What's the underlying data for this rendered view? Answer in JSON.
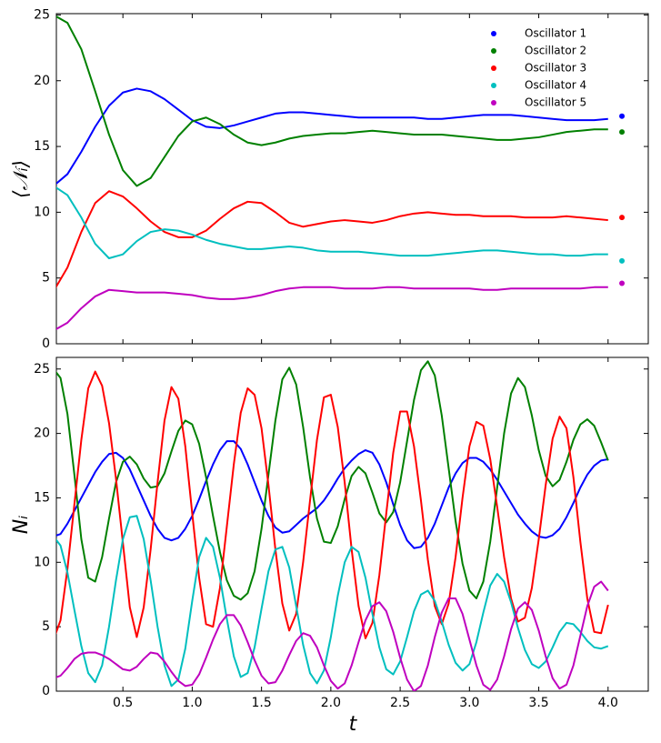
{
  "chart_data": [
    {
      "type": "line",
      "ylabel": "⟨𝒩ᵢ⟩",
      "legend": "upper right",
      "show_xtick_labels": false,
      "xlim": [
        0.02,
        4.29
      ],
      "ylim": [
        0,
        25.1
      ],
      "xticks": [
        0.5,
        {
          "value": 1,
          "label": "1.0"
        },
        1.5,
        {
          "value": 2,
          "label": "2.0"
        },
        2.5,
        {
          "value": 3,
          "label": "3.0"
        },
        3.5,
        {
          "value": 4,
          "label": "4.0"
        }
      ],
      "yticks": [
        0,
        5,
        10,
        15,
        20,
        25
      ],
      "endpoint_x": 4.1,
      "x": [
        0,
        0.1,
        0.2,
        0.3,
        0.4,
        0.5,
        0.6,
        0.7,
        0.8,
        0.9,
        1.0,
        1.1,
        1.2,
        1.3,
        1.4,
        1.5,
        1.6,
        1.7,
        1.8,
        1.9,
        2.0,
        2.1,
        2.2,
        2.3,
        2.4,
        2.5,
        2.6,
        2.7,
        2.8,
        2.9,
        3.0,
        3.1,
        3.2,
        3.3,
        3.4,
        3.5,
        3.6,
        3.7,
        3.8,
        3.9,
        4.0
      ],
      "series": [
        {
          "name": "Oscillator 1",
          "color": "#0000ff",
          "endpoint": 17.3,
          "values": [
            12,
            12.9,
            14.6,
            16.5,
            18.1,
            19.1,
            19.4,
            19.2,
            18.6,
            17.8,
            17,
            16.5,
            16.4,
            16.6,
            16.9,
            17.2,
            17.5,
            17.6,
            17.6,
            17.5,
            17.4,
            17.3,
            17.2,
            17.2,
            17.2,
            17.2,
            17.2,
            17.1,
            17.1,
            17.2,
            17.3,
            17.4,
            17.4,
            17.4,
            17.3,
            17.2,
            17.1,
            17,
            17,
            17,
            17.1
          ]
        },
        {
          "name": "Oscillator 2",
          "color": "#008000",
          "endpoint": 16.1,
          "values": [
            25,
            24.4,
            22.4,
            19.2,
            15.9,
            13.2,
            12,
            12.6,
            14.2,
            15.8,
            16.9,
            17.2,
            16.7,
            15.9,
            15.3,
            15.1,
            15.3,
            15.6,
            15.8,
            15.9,
            16,
            16,
            16.1,
            16.2,
            16.1,
            16,
            15.9,
            15.9,
            15.9,
            15.8,
            15.7,
            15.6,
            15.5,
            15.5,
            15.6,
            15.7,
            15.9,
            16.1,
            16.2,
            16.3,
            16.3
          ]
        },
        {
          "name": "Oscillator 3",
          "color": "#ff0000",
          "endpoint": 9.6,
          "values": [
            4,
            5.8,
            8.5,
            10.7,
            11.6,
            11.2,
            10.3,
            9.3,
            8.5,
            8.1,
            8.1,
            8.6,
            9.5,
            10.3,
            10.8,
            10.7,
            10,
            9.2,
            8.9,
            9.1,
            9.3,
            9.4,
            9.3,
            9.2,
            9.4,
            9.7,
            9.9,
            10,
            9.9,
            9.8,
            9.8,
            9.7,
            9.7,
            9.7,
            9.6,
            9.6,
            9.6,
            9.7,
            9.6,
            9.5,
            9.4
          ]
        },
        {
          "name": "Oscillator 4",
          "color": "#00bfbf",
          "endpoint": 6.3,
          "values": [
            12,
            11.3,
            9.6,
            7.6,
            6.5,
            6.8,
            7.8,
            8.5,
            8.7,
            8.6,
            8.3,
            7.9,
            7.6,
            7.4,
            7.2,
            7.2,
            7.3,
            7.4,
            7.3,
            7.1,
            7,
            7,
            7,
            6.9,
            6.8,
            6.7,
            6.7,
            6.7,
            6.8,
            6.9,
            7,
            7.1,
            7.1,
            7,
            6.9,
            6.8,
            6.8,
            6.7,
            6.7,
            6.8,
            6.8
          ]
        },
        {
          "name": "Oscillator 5",
          "color": "#bf00bf",
          "endpoint": 4.6,
          "values": [
            1,
            1.6,
            2.7,
            3.6,
            4.1,
            4,
            3.9,
            3.9,
            3.9,
            3.8,
            3.7,
            3.5,
            3.4,
            3.4,
            3.5,
            3.7,
            4,
            4.2,
            4.3,
            4.3,
            4.3,
            4.2,
            4.2,
            4.2,
            4.3,
            4.3,
            4.2,
            4.2,
            4.2,
            4.2,
            4.2,
            4.1,
            4.1,
            4.2,
            4.2,
            4.2,
            4.2,
            4.2,
            4.2,
            4.3,
            4.3
          ]
        }
      ]
    },
    {
      "type": "line",
      "ylabel": "Nᵢ",
      "xlabel": "t",
      "show_xtick_labels": true,
      "xlim": [
        0.02,
        4.29
      ],
      "ylim": [
        0,
        25.9
      ],
      "xticks": [
        0.5,
        {
          "value": 1,
          "label": "1.0"
        },
        1.5,
        {
          "value": 2,
          "label": "2.0"
        },
        2.5,
        {
          "value": 3,
          "label": "3.0"
        },
        3.5,
        {
          "value": 4,
          "label": "4.0"
        }
      ],
      "yticks": [
        0,
        5,
        10,
        15,
        20,
        25
      ],
      "x": [
        0,
        0.05,
        0.1,
        0.15,
        0.2,
        0.25,
        0.3,
        0.35,
        0.4,
        0.45,
        0.5,
        0.55,
        0.6,
        0.65,
        0.7,
        0.75,
        0.8,
        0.85,
        0.9,
        0.95,
        1.0,
        1.05,
        1.1,
        1.15,
        1.2,
        1.25,
        1.3,
        1.35,
        1.4,
        1.45,
        1.5,
        1.55,
        1.6,
        1.65,
        1.7,
        1.75,
        1.8,
        1.85,
        1.9,
        1.95,
        2.0,
        2.05,
        2.1,
        2.15,
        2.2,
        2.25,
        2.3,
        2.35,
        2.4,
        2.45,
        2.5,
        2.55,
        2.6,
        2.65,
        2.7,
        2.75,
        2.8,
        2.85,
        2.9,
        2.95,
        3.0,
        3.05,
        3.1,
        3.15,
        3.2,
        3.25,
        3.3,
        3.35,
        3.4,
        3.45,
        3.5,
        3.55,
        3.6,
        3.65,
        3.7,
        3.75,
        3.8,
        3.85,
        3.9,
        3.95,
        4.0
      ],
      "series": [
        {
          "color": "#0000ff",
          "values": [
            12,
            12.2,
            13,
            14,
            15,
            16,
            17,
            17.8,
            18.4,
            18.5,
            18.1,
            17.2,
            16,
            14.8,
            13.6,
            12.6,
            11.9,
            11.7,
            11.9,
            12.6,
            13.6,
            14.9,
            16.3,
            17.6,
            18.7,
            19.4,
            19.4,
            18.8,
            17.6,
            16.2,
            14.8,
            13.6,
            12.7,
            12.3,
            12.4,
            12.9,
            13.4,
            13.8,
            14.2,
            14.8,
            15.6,
            16.5,
            17.3,
            17.9,
            18.4,
            18.7,
            18.5,
            17.6,
            16.2,
            14.5,
            12.9,
            11.7,
            11.1,
            11.2,
            11.9,
            13,
            14.4,
            15.8,
            16.9,
            17.7,
            18.1,
            18.1,
            17.8,
            17.2,
            16.4,
            15.5,
            14.6,
            13.7,
            13,
            12.4,
            12,
            11.9,
            12.1,
            12.6,
            13.5,
            14.6,
            15.8,
            16.8,
            17.5,
            17.9,
            18
          ]
        },
        {
          "color": "#008000",
          "values": [
            25,
            24.3,
            21.5,
            16.8,
            11.8,
            8.8,
            8.5,
            10.4,
            13.4,
            16.2,
            17.8,
            18.2,
            17.6,
            16.5,
            15.8,
            15.9,
            16.9,
            18.6,
            20.2,
            21,
            20.7,
            19.2,
            16.6,
            13.6,
            10.8,
            8.6,
            7.4,
            7.1,
            7.6,
            9.3,
            12.6,
            16.8,
            21,
            24.2,
            25.1,
            23.8,
            20.5,
            16.6,
            13.4,
            11.6,
            11.5,
            12.8,
            14.9,
            16.7,
            17.4,
            16.9,
            15.4,
            13.8,
            13.1,
            13.9,
            16.2,
            19.4,
            22.6,
            24.9,
            25.6,
            24.5,
            21.4,
            17.3,
            13.2,
            9.9,
            7.8,
            7.2,
            8.5,
            11.6,
            15.8,
            20,
            23.1,
            24.3,
            23.6,
            21.4,
            18.7,
            16.7,
            15.9,
            16.4,
            17.8,
            19.5,
            20.7,
            21.1,
            20.6,
            19.3,
            17.9
          ]
        },
        {
          "color": "#ff0000",
          "values": [
            4,
            5.5,
            9.5,
            14.5,
            19.5,
            23.5,
            24.8,
            23.7,
            20.8,
            16.5,
            11.5,
            6.5,
            4.2,
            6.5,
            11,
            16.2,
            21,
            23.6,
            22.7,
            19,
            13.8,
            8.8,
            5.2,
            5,
            8,
            12.8,
            17.6,
            21.6,
            23.5,
            23,
            20.4,
            16,
            11,
            6.8,
            4.7,
            6,
            10,
            14.8,
            19.5,
            22.8,
            23,
            20.5,
            16.2,
            11,
            6.6,
            4.1,
            5.3,
            9,
            13.8,
            18.5,
            21.7,
            21.7,
            19,
            14.8,
            10.2,
            6.6,
            5.2,
            6.8,
            10.4,
            15,
            19,
            20.9,
            20.6,
            18,
            14.3,
            10.4,
            7.2,
            5.4,
            5.7,
            8,
            11.8,
            16,
            19.6,
            21.3,
            20.4,
            16.6,
            11.6,
            7.2,
            4.6,
            4.5,
            6.7
          ]
        },
        {
          "color": "#00bfbf",
          "values": [
            12,
            11.3,
            9.2,
            6.3,
            3.5,
            1.4,
            0.7,
            2,
            5,
            8.6,
            11.8,
            13.5,
            13.6,
            11.8,
            8.6,
            5,
            2,
            0.4,
            0.9,
            3.3,
            7,
            10.4,
            11.9,
            11.2,
            8.8,
            5.6,
            2.7,
            1.1,
            1.4,
            3.4,
            6.4,
            9.3,
            11,
            11.2,
            9.6,
            6.6,
            3.6,
            1.4,
            0.6,
            1.6,
            4.2,
            7.4,
            10,
            11.2,
            10.8,
            8.8,
            6,
            3.4,
            1.7,
            1.3,
            2.3,
            4.2,
            6.2,
            7.5,
            7.8,
            7,
            5.4,
            3.6,
            2.2,
            1.6,
            2.1,
            3.8,
            6.1,
            8.2,
            9.1,
            8.5,
            6.9,
            4.9,
            3.2,
            2.1,
            1.8,
            2.3,
            3.4,
            4.6,
            5.3,
            5.2,
            4.6,
            3.9,
            3.4,
            3.3,
            3.5
          ]
        },
        {
          "color": "#bf00bf",
          "values": [
            1,
            1.2,
            1.8,
            2.5,
            2.9,
            3,
            3,
            2.8,
            2.5,
            2.1,
            1.7,
            1.6,
            1.9,
            2.5,
            3,
            2.9,
            2.3,
            1.5,
            0.8,
            0.4,
            0.5,
            1.3,
            2.6,
            4,
            5.2,
            5.9,
            5.9,
            5.1,
            3.8,
            2.4,
            1.2,
            0.6,
            0.7,
            1.6,
            2.8,
            3.9,
            4.5,
            4.3,
            3.4,
            2,
            0.8,
            0.2,
            0.6,
            2,
            3.8,
            5.5,
            6.6,
            6.9,
            6.2,
            4.6,
            2.6,
            0.9,
            0,
            0.4,
            2,
            4.2,
            6.1,
            7.2,
            7.2,
            6,
            4,
            2,
            0.5,
            0.1,
            0.9,
            2.7,
            4.8,
            6.4,
            6.9,
            6.3,
            4.7,
            2.7,
            1,
            0.2,
            0.5,
            2,
            4.3,
            6.6,
            8.1,
            8.5,
            7.8
          ]
        }
      ]
    }
  ]
}
